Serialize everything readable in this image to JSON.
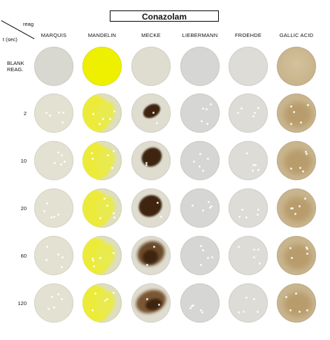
{
  "title": "Conazolam",
  "corner": {
    "top_label": "reag",
    "bottom_label": "t (sec)"
  },
  "reagents": [
    "MARQUIS",
    "MANDELIN",
    "MECKE",
    "LIEBERMANN",
    "FROEHDE",
    "GALLIC ACID"
  ],
  "rows": [
    "BLANK\nREAG.",
    "2",
    "10",
    "20",
    "60",
    "120"
  ],
  "colors": {
    "marquis": "#e3e2d2",
    "mandelin_blank": "#eef000",
    "mandelin": "#eceb3a",
    "mecke": "#dfddd0",
    "mecke_stain": "#3f2510",
    "liebermann": "#d6d6d4",
    "froehde": "#dddcd6",
    "gallic_acid": "#c9b58e"
  }
}
